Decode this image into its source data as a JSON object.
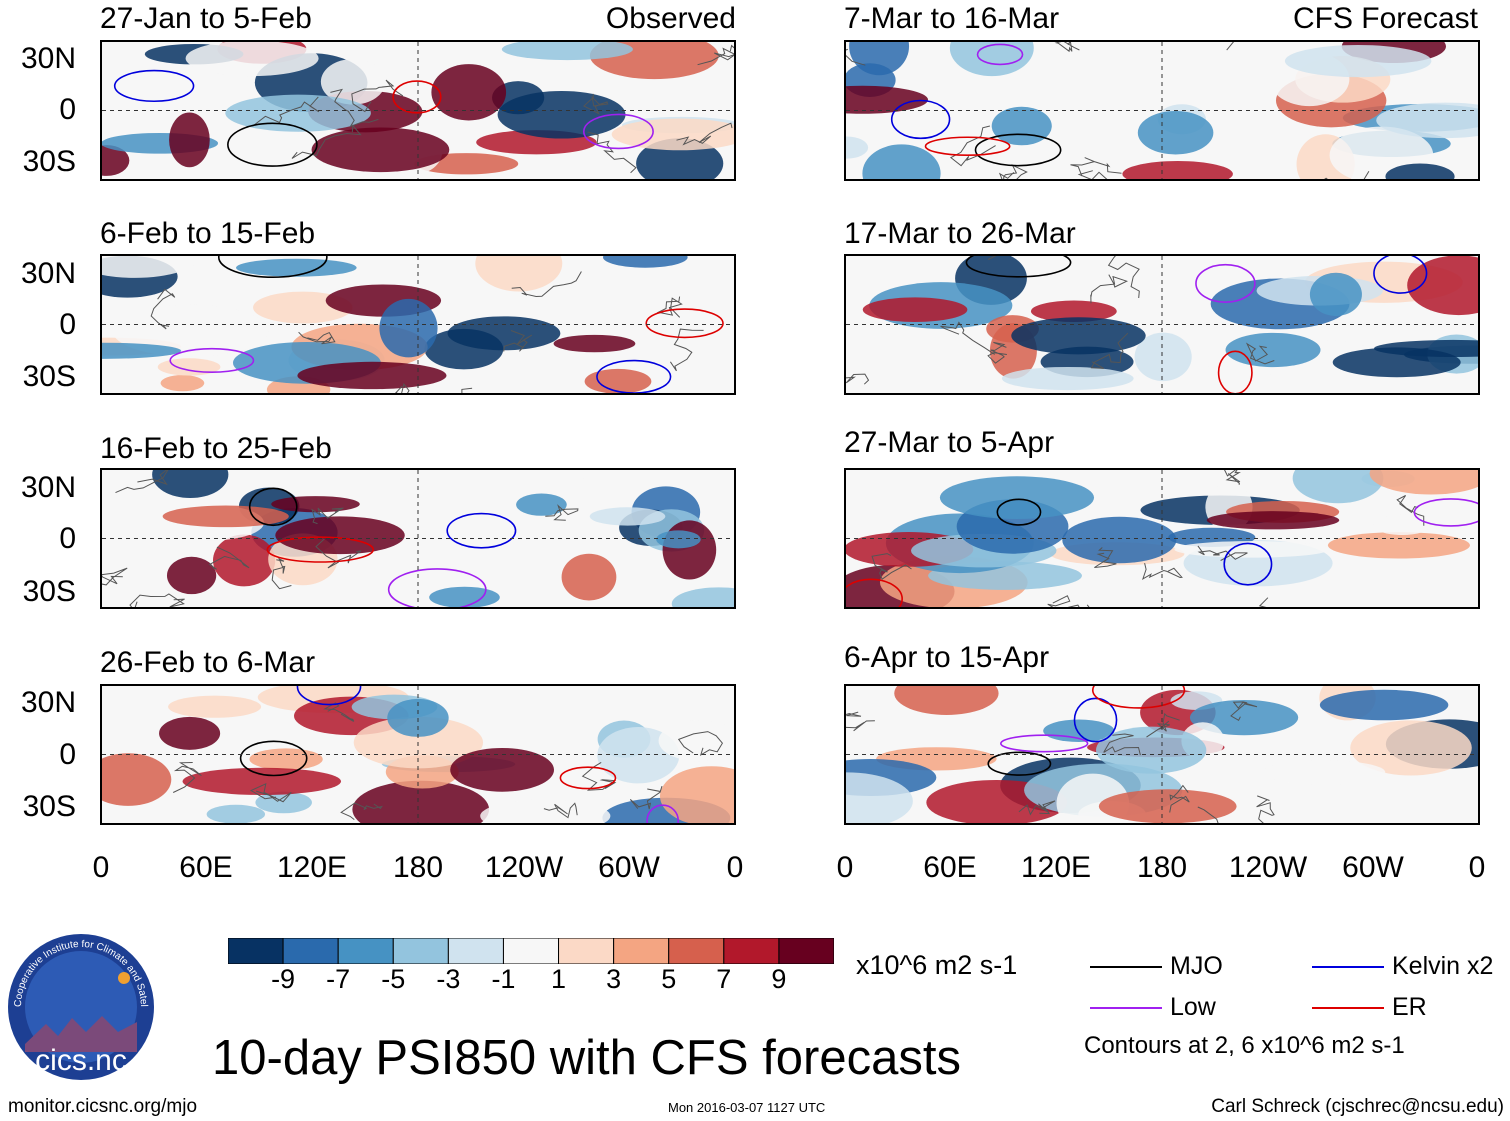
{
  "title": "10-day PSI850 with CFS forecasts",
  "labels": {
    "observed": "Observed",
    "forecast": "CFS Forecast"
  },
  "panels": [
    {
      "period": "27-Jan to 5-Feb",
      "group": "observed"
    },
    {
      "period": "6-Feb to 15-Feb",
      "group": "observed"
    },
    {
      "period": "16-Feb to 25-Feb",
      "group": "observed"
    },
    {
      "period": "26-Feb to 6-Mar",
      "group": "observed"
    },
    {
      "period": "7-Mar to 16-Mar",
      "group": "forecast"
    },
    {
      "period": "17-Mar to 26-Mar",
      "group": "forecast"
    },
    {
      "period": "27-Mar to 5-Apr",
      "group": "forecast"
    },
    {
      "period": "6-Apr to 15-Apr",
      "group": "forecast"
    }
  ],
  "lat_ticks": [
    "30N",
    "0",
    "30S"
  ],
  "lon_ticks": [
    "0",
    "60E",
    "120E",
    "180",
    "120W",
    "60W",
    "0"
  ],
  "colorbar": {
    "ticks": [
      "-9",
      "-7",
      "-5",
      "-3",
      "-1",
      "1",
      "3",
      "5",
      "7",
      "9"
    ],
    "colors": [
      "#073263",
      "#2a6aad",
      "#4692c3",
      "#93c4de",
      "#d0e3ef",
      "#f7f7f7",
      "#fbd9c6",
      "#f4a582",
      "#d6604d",
      "#b2182b",
      "#67001f"
    ],
    "units": "x10^6 m2 s-1"
  },
  "legend": [
    {
      "label": "MJO",
      "color": "#000000"
    },
    {
      "label": "Kelvin x2",
      "color": "#0000dd"
    },
    {
      "label": "Low",
      "color": "#a020f0"
    },
    {
      "label": "ER",
      "color": "#dd0000"
    }
  ],
  "contour_note": "Contours at 2, 6 x10^6 m2 s-1",
  "footer": {
    "left": "monitor.cicsnc.org/mjo",
    "center": "Mon 2016-03-07 1127 UTC",
    "right": "Carl Schreck (cjschrec@ncsu.edu)"
  },
  "logo": {
    "text": "cics.nc",
    "ring_text": "Cooperative Institute for Climate and Satellites"
  }
}
